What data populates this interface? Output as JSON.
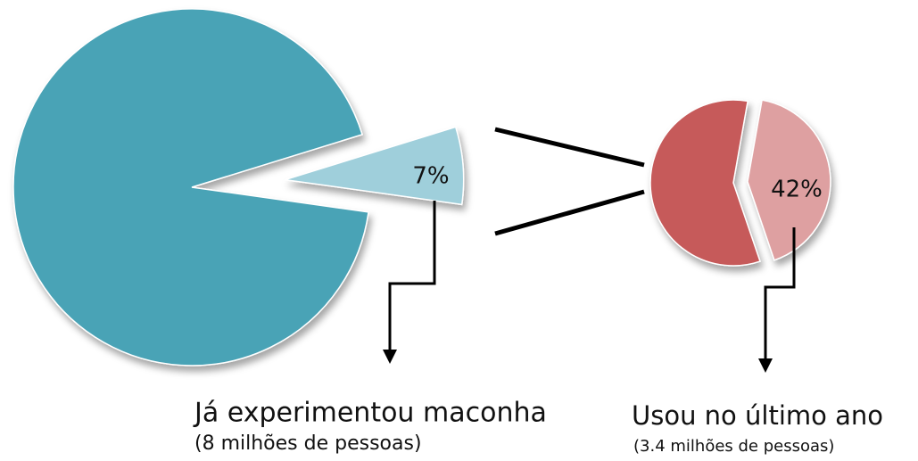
{
  "chart_data": [
    {
      "type": "pie",
      "values": [
        93,
        7
      ],
      "value_labels": [
        null,
        "7%"
      ],
      "colors": [
        "#4aa3b6",
        "#9fcfdb"
      ],
      "annotations": [
        "Já experimentou maconha",
        "(8 milhões de pessoas)"
      ]
    },
    {
      "type": "pie",
      "values": [
        58,
        42
      ],
      "value_labels": [
        null,
        "42%"
      ],
      "colors": [
        "#c65a5a",
        "#dea0a1"
      ],
      "annotations": [
        "Usou no último ano",
        "(3.4 milhões de pessoas)"
      ]
    }
  ]
}
